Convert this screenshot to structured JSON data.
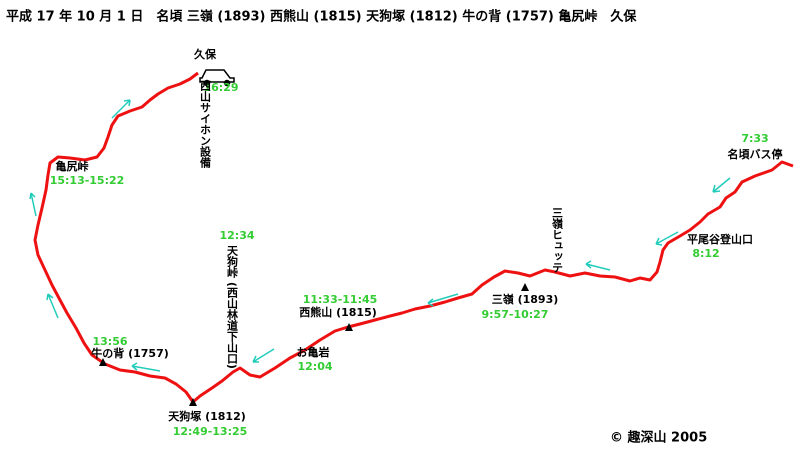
{
  "header": {
    "title": "平成 17 年 10 月 1 日　名頃 三嶺 (1893) 西熊山 (1815) 天狗塚 (1812) 牛の背 (1757) 亀尻峠　久保"
  },
  "places": [
    {
      "name": "名頃バス停",
      "time": "7:33"
    },
    {
      "name": "平尾谷登山口",
      "time": "8:12"
    },
    {
      "name": "三嶺ヒュッテ"
    },
    {
      "name": "三嶺 (1893)",
      "time": "9:57-10:27"
    },
    {
      "name": "西熊山 (1815)",
      "time": "11:33-11:45"
    },
    {
      "name": "お亀岩",
      "time": "12:04"
    },
    {
      "name": "天狗峠 (西山林道下山口)",
      "time": "12:34"
    },
    {
      "name": "天狗塚 (1812)",
      "time": "12:49-13:25"
    },
    {
      "name": "牛の背 (1757)",
      "time": "13:56"
    },
    {
      "name": "亀尻峠",
      "time": "15:13-15:22"
    },
    {
      "name": "久保",
      "time": "16:29"
    },
    {
      "name": "西山サイホン設備"
    }
  ],
  "copyright": "© 趣深山 2005"
}
